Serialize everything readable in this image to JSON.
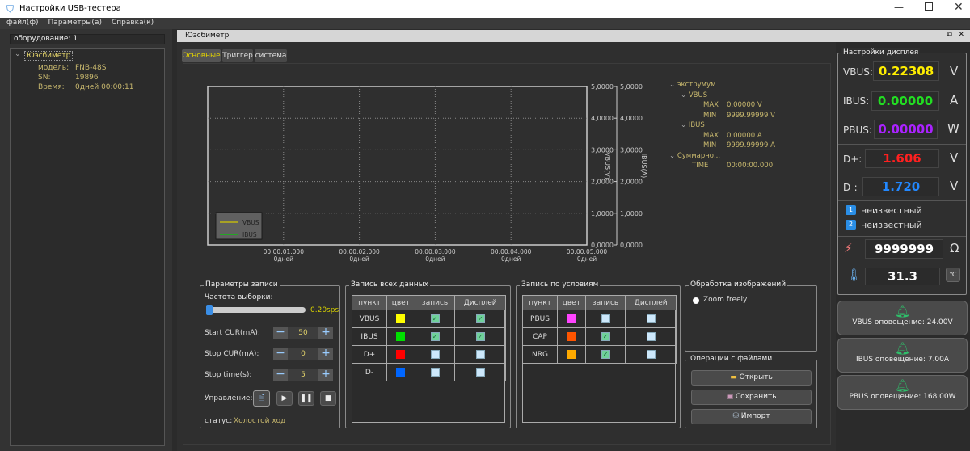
{
  "window": {
    "title": "Настройки USB-тестера"
  },
  "menu": [
    "файл(ф)",
    "Параметры(а)",
    "Справка(к)"
  ],
  "sidebar": {
    "equipment": "оборудование: 1",
    "device": "Юэсбиметр",
    "fields": [
      {
        "k": "модель:",
        "v": "FNB-48S"
      },
      {
        "k": "SN:",
        "v": "19896"
      },
      {
        "k": "Время:",
        "v": "0дней 00:00:11"
      }
    ]
  },
  "panel": {
    "title": "Юэсбиметр",
    "tabs": [
      "Основные",
      "Триггер",
      "система"
    ],
    "active_tab": "Основные"
  },
  "chart_data": {
    "type": "line",
    "xlabel": "",
    "ylabel": "VBUS(V)",
    "ylabel2": "IBUS(A)",
    "xlim": [
      "00:00:00.000",
      "00:00:05.000"
    ],
    "ylim": [
      0,
      5
    ],
    "ylim2": [
      0,
      5
    ],
    "x_ticks": [
      {
        "t": "00:00:01.000",
        "d": "0дней"
      },
      {
        "t": "00:00:02.000",
        "d": "0дней"
      },
      {
        "t": "00:00:03.000",
        "d": "0дней"
      },
      {
        "t": "00:00:04.000",
        "d": "0дней"
      },
      {
        "t": "00:00:05.000",
        "d": "0дней"
      }
    ],
    "y_ticks": [
      "5,0000",
      "4,0000",
      "3,0000",
      "2,0000",
      "1,0000",
      "0,0000"
    ],
    "grid": true,
    "legend": "bottom-left",
    "series": [
      {
        "name": "VBUS",
        "color": "#d4c800",
        "values": []
      },
      {
        "name": "IBUS",
        "color": "#00d000",
        "values": []
      }
    ]
  },
  "stats": {
    "extremum": "экструмум",
    "vbus": "VBUS",
    "ibus": "IBUS",
    "max": "MAX",
    "min": "MIN",
    "vbus_max": "0.00000 V",
    "vbus_min": "9999.99999 V",
    "ibus_max": "0.00000 A",
    "ibus_min": "9999.99999 A",
    "summary": "Суммарно...",
    "time": "TIME",
    "time_val": "00:00:00.000"
  },
  "record": {
    "title": "Параметры записи",
    "rate_label": "Частота выборки:",
    "rate": "0.20sps",
    "start_cur": "Start CUR(mA):",
    "start_val": "50",
    "stop_cur": "Stop CUR(mA):",
    "stop_val": "0",
    "stop_time": "Stop time(s):",
    "stop_time_val": "5",
    "control": "Управление:",
    "status_label": "статус:",
    "status": "Холостой ход"
  },
  "all_data": {
    "title": "Запись всех данных",
    "headers": [
      "пункт",
      "цвет",
      "запись",
      "Дисплей"
    ],
    "rows": [
      {
        "n": "VBUS",
        "c": "#ffff00",
        "r": true,
        "d": true
      },
      {
        "n": "IBUS",
        "c": "#00e000",
        "r": true,
        "d": true
      },
      {
        "n": "D+",
        "c": "#ff0000",
        "r": false,
        "d": false
      },
      {
        "n": "D-",
        "c": "#0066ff",
        "r": false,
        "d": false
      }
    ]
  },
  "cond_data": {
    "title": "Запись по условиям",
    "headers": [
      "пункт",
      "цвет",
      "запись",
      "Дисплей"
    ],
    "rows": [
      {
        "n": "PBUS",
        "c": "#ff44ff",
        "r": false,
        "d": false
      },
      {
        "n": "CAP",
        "c": "#ff5500",
        "r": true,
        "d": false
      },
      {
        "n": "NRG",
        "c": "#ffaa00",
        "r": true,
        "d": false
      }
    ]
  },
  "image": {
    "title": "Обработка изображений",
    "zoom": "Zoom freely"
  },
  "files": {
    "title": "Операции с файлами",
    "open": "Открыть",
    "save": "Сохранить",
    "import": "Импорт"
  },
  "display": {
    "title": "Настройки дисплея",
    "vbus_l": "VBUS:",
    "vbus": "0.22308",
    "vbus_u": "V",
    "ibus_l": "IBUS:",
    "ibus": "0.00000",
    "ibus_u": "A",
    "pbus_l": "PBUS:",
    "pbus": "0.00000",
    "pbus_u": "W",
    "dp_l": "D+:",
    "dp": "1.606",
    "dp_u": "V",
    "dm_l": "D-:",
    "dm": "1.720",
    "dm_u": "V",
    "p1": "1",
    "p1_t": "неизвестный",
    "p2": "2",
    "p2_t": "неизвестный",
    "res": "9999999",
    "res_u": "Ω",
    "temp": "31.3",
    "temp_u": "℃"
  },
  "alarms": [
    "VBUS оповещение: 24.00V",
    "IBUS оповещение: 7.00A",
    "PBUS оповещение: 168.00W"
  ]
}
